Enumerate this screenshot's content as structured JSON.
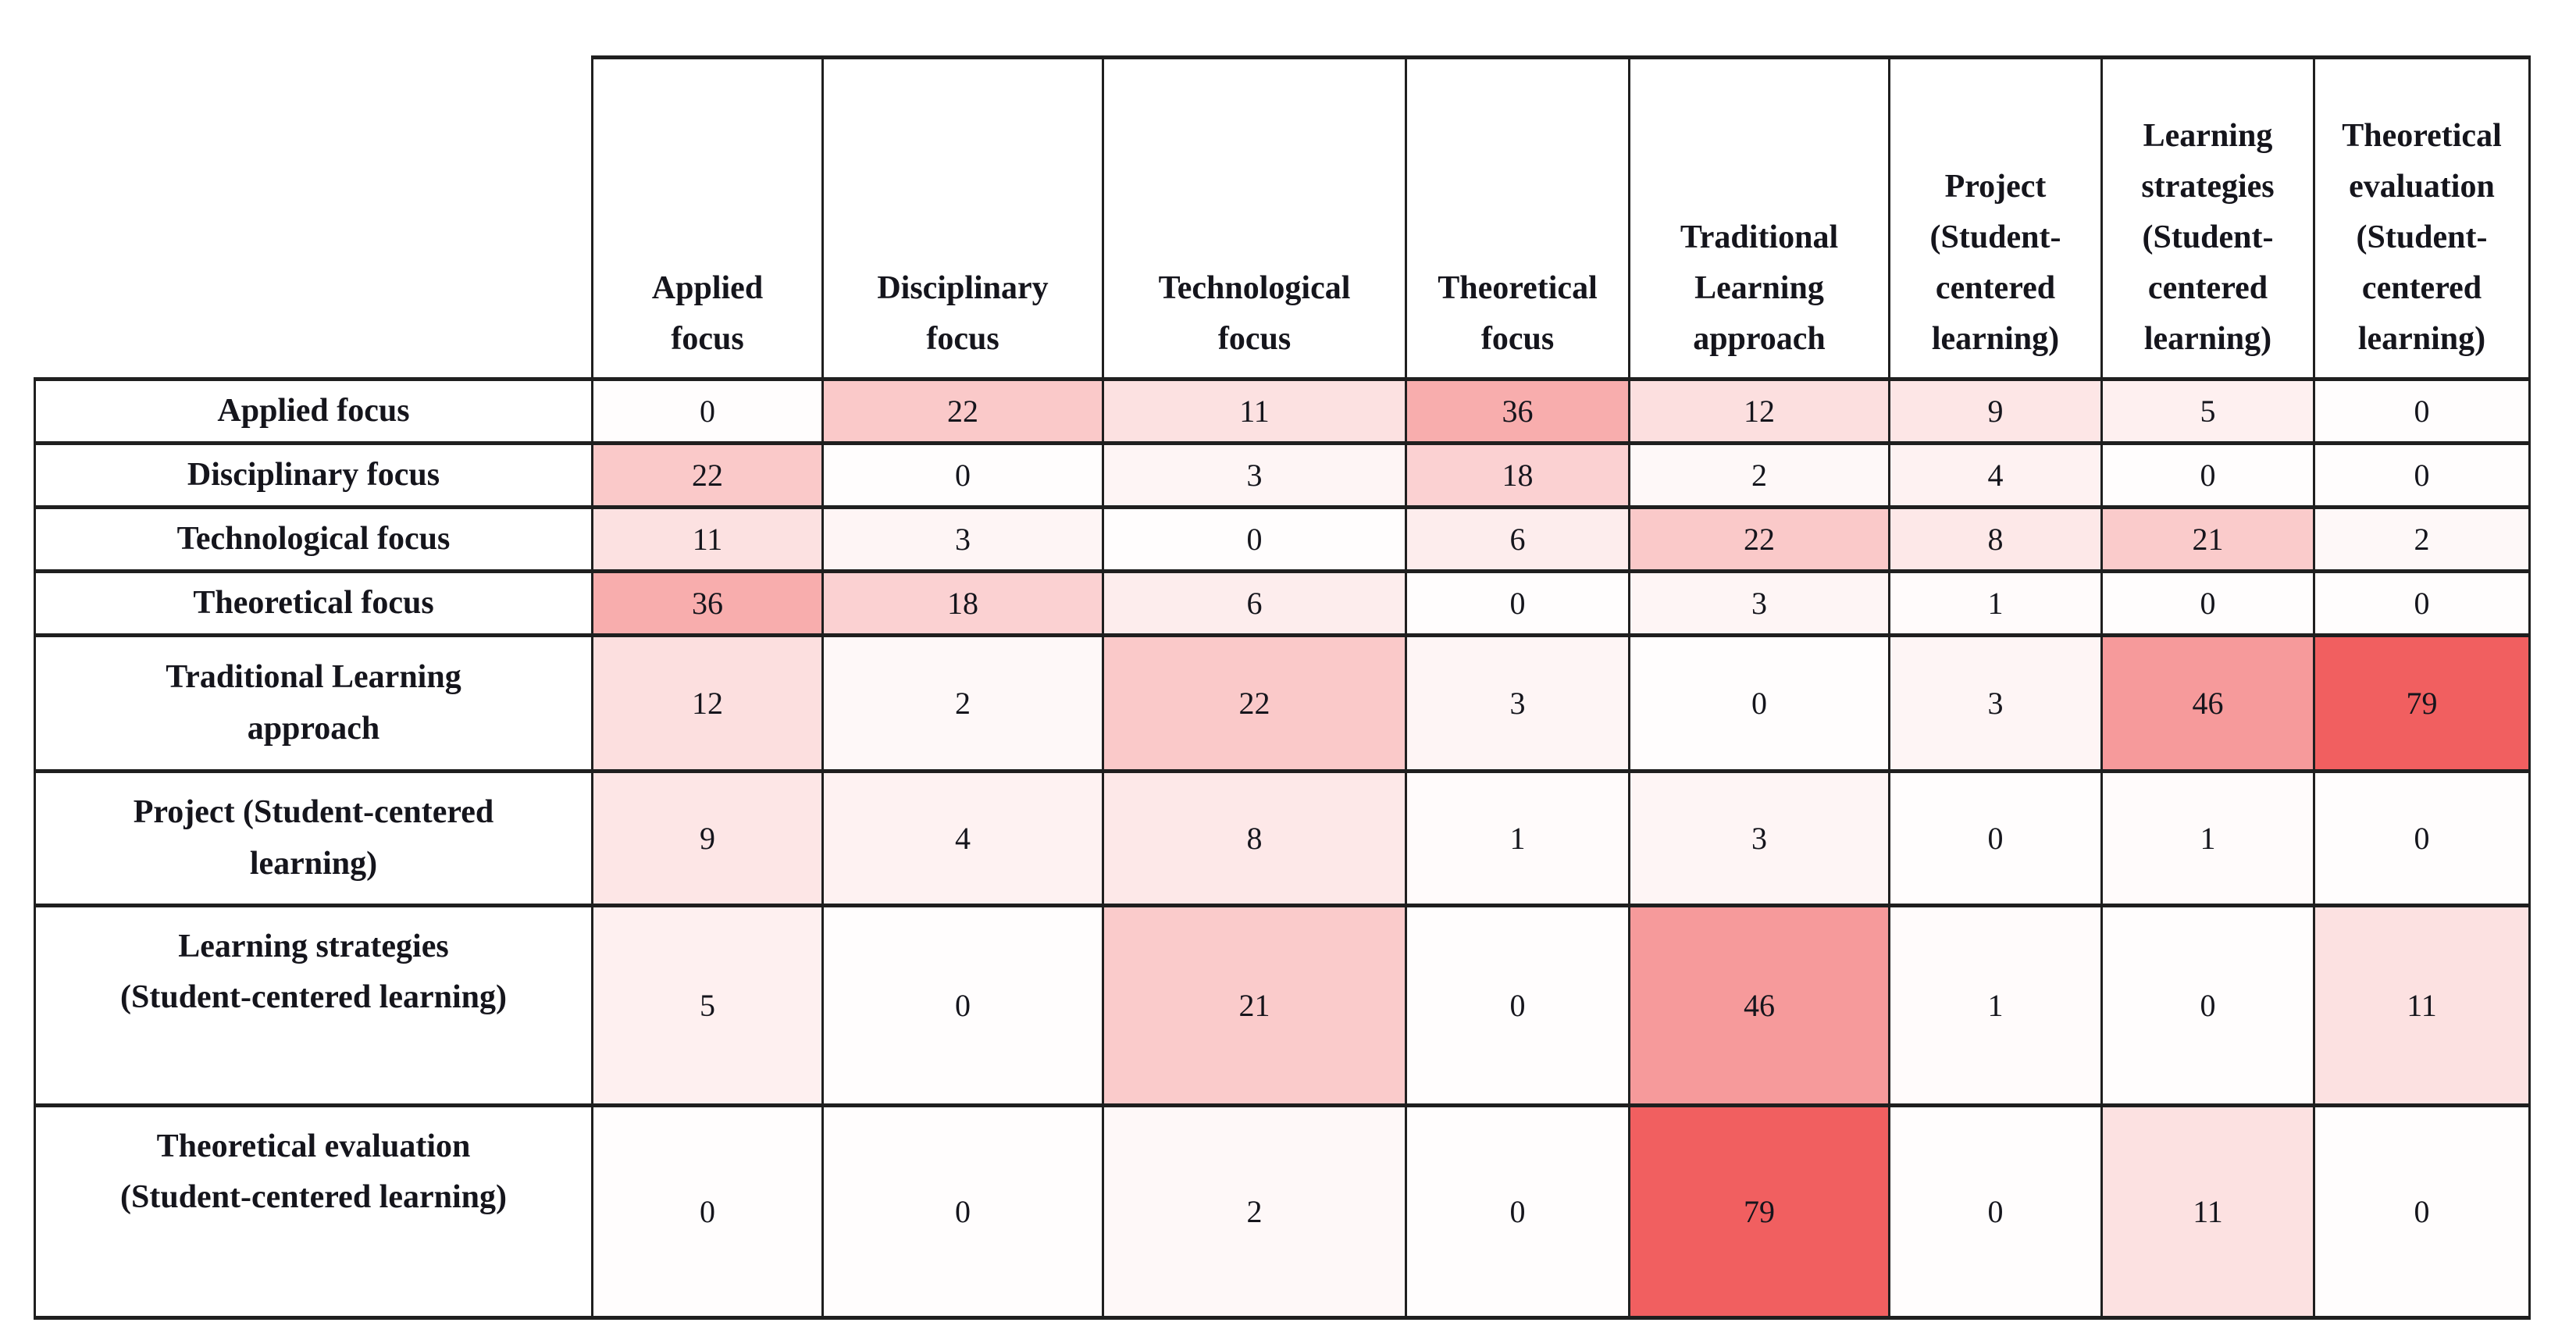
{
  "chart_data": {
    "type": "heatmap",
    "title": "",
    "categories": [
      "Applied focus",
      "Disciplinary focus",
      "Technological focus",
      "Theoretical focus",
      "Traditional Learning approach",
      "Project (Student-centered learning)",
      "Learning strategies (Student-centered learning)",
      "Theoretical evaluation (Student-centered learning)"
    ],
    "column_header_display": [
      "Applied\nfocus",
      "Disciplinary\nfocus",
      "Technological\nfocus",
      "Theoretical\nfocus",
      "Traditional\nLearning\napproach",
      "Project\n(Student-\ncentered\nlearning)",
      "Learning\nstrategies\n(Student-\ncentered\nlearning)",
      "Theoretical\nevaluation\n(Student-\ncentered\nlearning)"
    ],
    "row_header_display": [
      "Applied focus",
      "Disciplinary focus",
      "Technological focus",
      "Theoretical focus",
      "Traditional Learning\napproach",
      "Project (Student-centered\nlearning)",
      "Learning strategies\n(Student-centered learning)",
      "Theoretical evaluation\n(Student-centered learning)"
    ],
    "matrix": [
      [
        0,
        22,
        11,
        36,
        12,
        9,
        5,
        0
      ],
      [
        22,
        0,
        3,
        18,
        2,
        4,
        0,
        0
      ],
      [
        11,
        3,
        0,
        6,
        22,
        8,
        21,
        2
      ],
      [
        36,
        18,
        6,
        0,
        3,
        1,
        0,
        0
      ],
      [
        12,
        2,
        22,
        3,
        0,
        3,
        46,
        79
      ],
      [
        9,
        4,
        8,
        1,
        3,
        0,
        1,
        0
      ],
      [
        5,
        0,
        21,
        0,
        46,
        1,
        0,
        11
      ],
      [
        0,
        0,
        2,
        0,
        79,
        0,
        11,
        0
      ]
    ],
    "value_range": [
      0,
      79
    ],
    "colors": {
      "low": "#fffdfd",
      "high": "#f15f5f"
    },
    "grid": true,
    "legend_position": "none"
  }
}
